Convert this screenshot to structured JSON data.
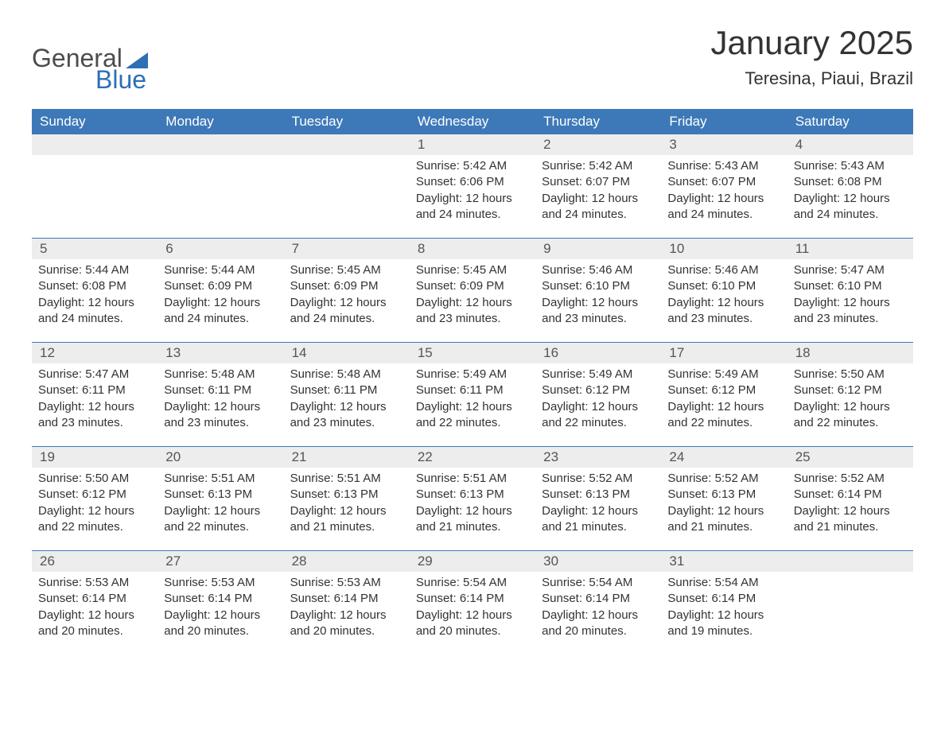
{
  "logo": {
    "text1": "General",
    "text2": "Blue",
    "flag_color": "#2d6fb5"
  },
  "title": "January 2025",
  "location": "Teresina, Piaui, Brazil",
  "colors": {
    "header_bg": "#3d79b8",
    "header_text": "#ffffff",
    "daynum_bg": "#ededed",
    "week_border": "#3d79b8",
    "text": "#333333",
    "logo_gray": "#4c4c4c",
    "logo_blue": "#2d6fb5",
    "background": "#ffffff"
  },
  "typography": {
    "title_fontsize": 42,
    "location_fontsize": 22,
    "dayheader_fontsize": 17,
    "daynum_fontsize": 17,
    "dayinfo_fontsize": 15,
    "logo_fontsize": 32
  },
  "day_names": [
    "Sunday",
    "Monday",
    "Tuesday",
    "Wednesday",
    "Thursday",
    "Friday",
    "Saturday"
  ],
  "weeks": [
    [
      {
        "day": "",
        "sunrise": "",
        "sunset": "",
        "daylight": ""
      },
      {
        "day": "",
        "sunrise": "",
        "sunset": "",
        "daylight": ""
      },
      {
        "day": "",
        "sunrise": "",
        "sunset": "",
        "daylight": ""
      },
      {
        "day": "1",
        "sunrise": "Sunrise: 5:42 AM",
        "sunset": "Sunset: 6:06 PM",
        "daylight": "Daylight: 12 hours and 24 minutes."
      },
      {
        "day": "2",
        "sunrise": "Sunrise: 5:42 AM",
        "sunset": "Sunset: 6:07 PM",
        "daylight": "Daylight: 12 hours and 24 minutes."
      },
      {
        "day": "3",
        "sunrise": "Sunrise: 5:43 AM",
        "sunset": "Sunset: 6:07 PM",
        "daylight": "Daylight: 12 hours and 24 minutes."
      },
      {
        "day": "4",
        "sunrise": "Sunrise: 5:43 AM",
        "sunset": "Sunset: 6:08 PM",
        "daylight": "Daylight: 12 hours and 24 minutes."
      }
    ],
    [
      {
        "day": "5",
        "sunrise": "Sunrise: 5:44 AM",
        "sunset": "Sunset: 6:08 PM",
        "daylight": "Daylight: 12 hours and 24 minutes."
      },
      {
        "day": "6",
        "sunrise": "Sunrise: 5:44 AM",
        "sunset": "Sunset: 6:09 PM",
        "daylight": "Daylight: 12 hours and 24 minutes."
      },
      {
        "day": "7",
        "sunrise": "Sunrise: 5:45 AM",
        "sunset": "Sunset: 6:09 PM",
        "daylight": "Daylight: 12 hours and 24 minutes."
      },
      {
        "day": "8",
        "sunrise": "Sunrise: 5:45 AM",
        "sunset": "Sunset: 6:09 PM",
        "daylight": "Daylight: 12 hours and 23 minutes."
      },
      {
        "day": "9",
        "sunrise": "Sunrise: 5:46 AM",
        "sunset": "Sunset: 6:10 PM",
        "daylight": "Daylight: 12 hours and 23 minutes."
      },
      {
        "day": "10",
        "sunrise": "Sunrise: 5:46 AM",
        "sunset": "Sunset: 6:10 PM",
        "daylight": "Daylight: 12 hours and 23 minutes."
      },
      {
        "day": "11",
        "sunrise": "Sunrise: 5:47 AM",
        "sunset": "Sunset: 6:10 PM",
        "daylight": "Daylight: 12 hours and 23 minutes."
      }
    ],
    [
      {
        "day": "12",
        "sunrise": "Sunrise: 5:47 AM",
        "sunset": "Sunset: 6:11 PM",
        "daylight": "Daylight: 12 hours and 23 minutes."
      },
      {
        "day": "13",
        "sunrise": "Sunrise: 5:48 AM",
        "sunset": "Sunset: 6:11 PM",
        "daylight": "Daylight: 12 hours and 23 minutes."
      },
      {
        "day": "14",
        "sunrise": "Sunrise: 5:48 AM",
        "sunset": "Sunset: 6:11 PM",
        "daylight": "Daylight: 12 hours and 23 minutes."
      },
      {
        "day": "15",
        "sunrise": "Sunrise: 5:49 AM",
        "sunset": "Sunset: 6:11 PM",
        "daylight": "Daylight: 12 hours and 22 minutes."
      },
      {
        "day": "16",
        "sunrise": "Sunrise: 5:49 AM",
        "sunset": "Sunset: 6:12 PM",
        "daylight": "Daylight: 12 hours and 22 minutes."
      },
      {
        "day": "17",
        "sunrise": "Sunrise: 5:49 AM",
        "sunset": "Sunset: 6:12 PM",
        "daylight": "Daylight: 12 hours and 22 minutes."
      },
      {
        "day": "18",
        "sunrise": "Sunrise: 5:50 AM",
        "sunset": "Sunset: 6:12 PM",
        "daylight": "Daylight: 12 hours and 22 minutes."
      }
    ],
    [
      {
        "day": "19",
        "sunrise": "Sunrise: 5:50 AM",
        "sunset": "Sunset: 6:12 PM",
        "daylight": "Daylight: 12 hours and 22 minutes."
      },
      {
        "day": "20",
        "sunrise": "Sunrise: 5:51 AM",
        "sunset": "Sunset: 6:13 PM",
        "daylight": "Daylight: 12 hours and 22 minutes."
      },
      {
        "day": "21",
        "sunrise": "Sunrise: 5:51 AM",
        "sunset": "Sunset: 6:13 PM",
        "daylight": "Daylight: 12 hours and 21 minutes."
      },
      {
        "day": "22",
        "sunrise": "Sunrise: 5:51 AM",
        "sunset": "Sunset: 6:13 PM",
        "daylight": "Daylight: 12 hours and 21 minutes."
      },
      {
        "day": "23",
        "sunrise": "Sunrise: 5:52 AM",
        "sunset": "Sunset: 6:13 PM",
        "daylight": "Daylight: 12 hours and 21 minutes."
      },
      {
        "day": "24",
        "sunrise": "Sunrise: 5:52 AM",
        "sunset": "Sunset: 6:13 PM",
        "daylight": "Daylight: 12 hours and 21 minutes."
      },
      {
        "day": "25",
        "sunrise": "Sunrise: 5:52 AM",
        "sunset": "Sunset: 6:14 PM",
        "daylight": "Daylight: 12 hours and 21 minutes."
      }
    ],
    [
      {
        "day": "26",
        "sunrise": "Sunrise: 5:53 AM",
        "sunset": "Sunset: 6:14 PM",
        "daylight": "Daylight: 12 hours and 20 minutes."
      },
      {
        "day": "27",
        "sunrise": "Sunrise: 5:53 AM",
        "sunset": "Sunset: 6:14 PM",
        "daylight": "Daylight: 12 hours and 20 minutes."
      },
      {
        "day": "28",
        "sunrise": "Sunrise: 5:53 AM",
        "sunset": "Sunset: 6:14 PM",
        "daylight": "Daylight: 12 hours and 20 minutes."
      },
      {
        "day": "29",
        "sunrise": "Sunrise: 5:54 AM",
        "sunset": "Sunset: 6:14 PM",
        "daylight": "Daylight: 12 hours and 20 minutes."
      },
      {
        "day": "30",
        "sunrise": "Sunrise: 5:54 AM",
        "sunset": "Sunset: 6:14 PM",
        "daylight": "Daylight: 12 hours and 20 minutes."
      },
      {
        "day": "31",
        "sunrise": "Sunrise: 5:54 AM",
        "sunset": "Sunset: 6:14 PM",
        "daylight": "Daylight: 12 hours and 19 minutes."
      },
      {
        "day": "",
        "sunrise": "",
        "sunset": "",
        "daylight": ""
      }
    ]
  ]
}
